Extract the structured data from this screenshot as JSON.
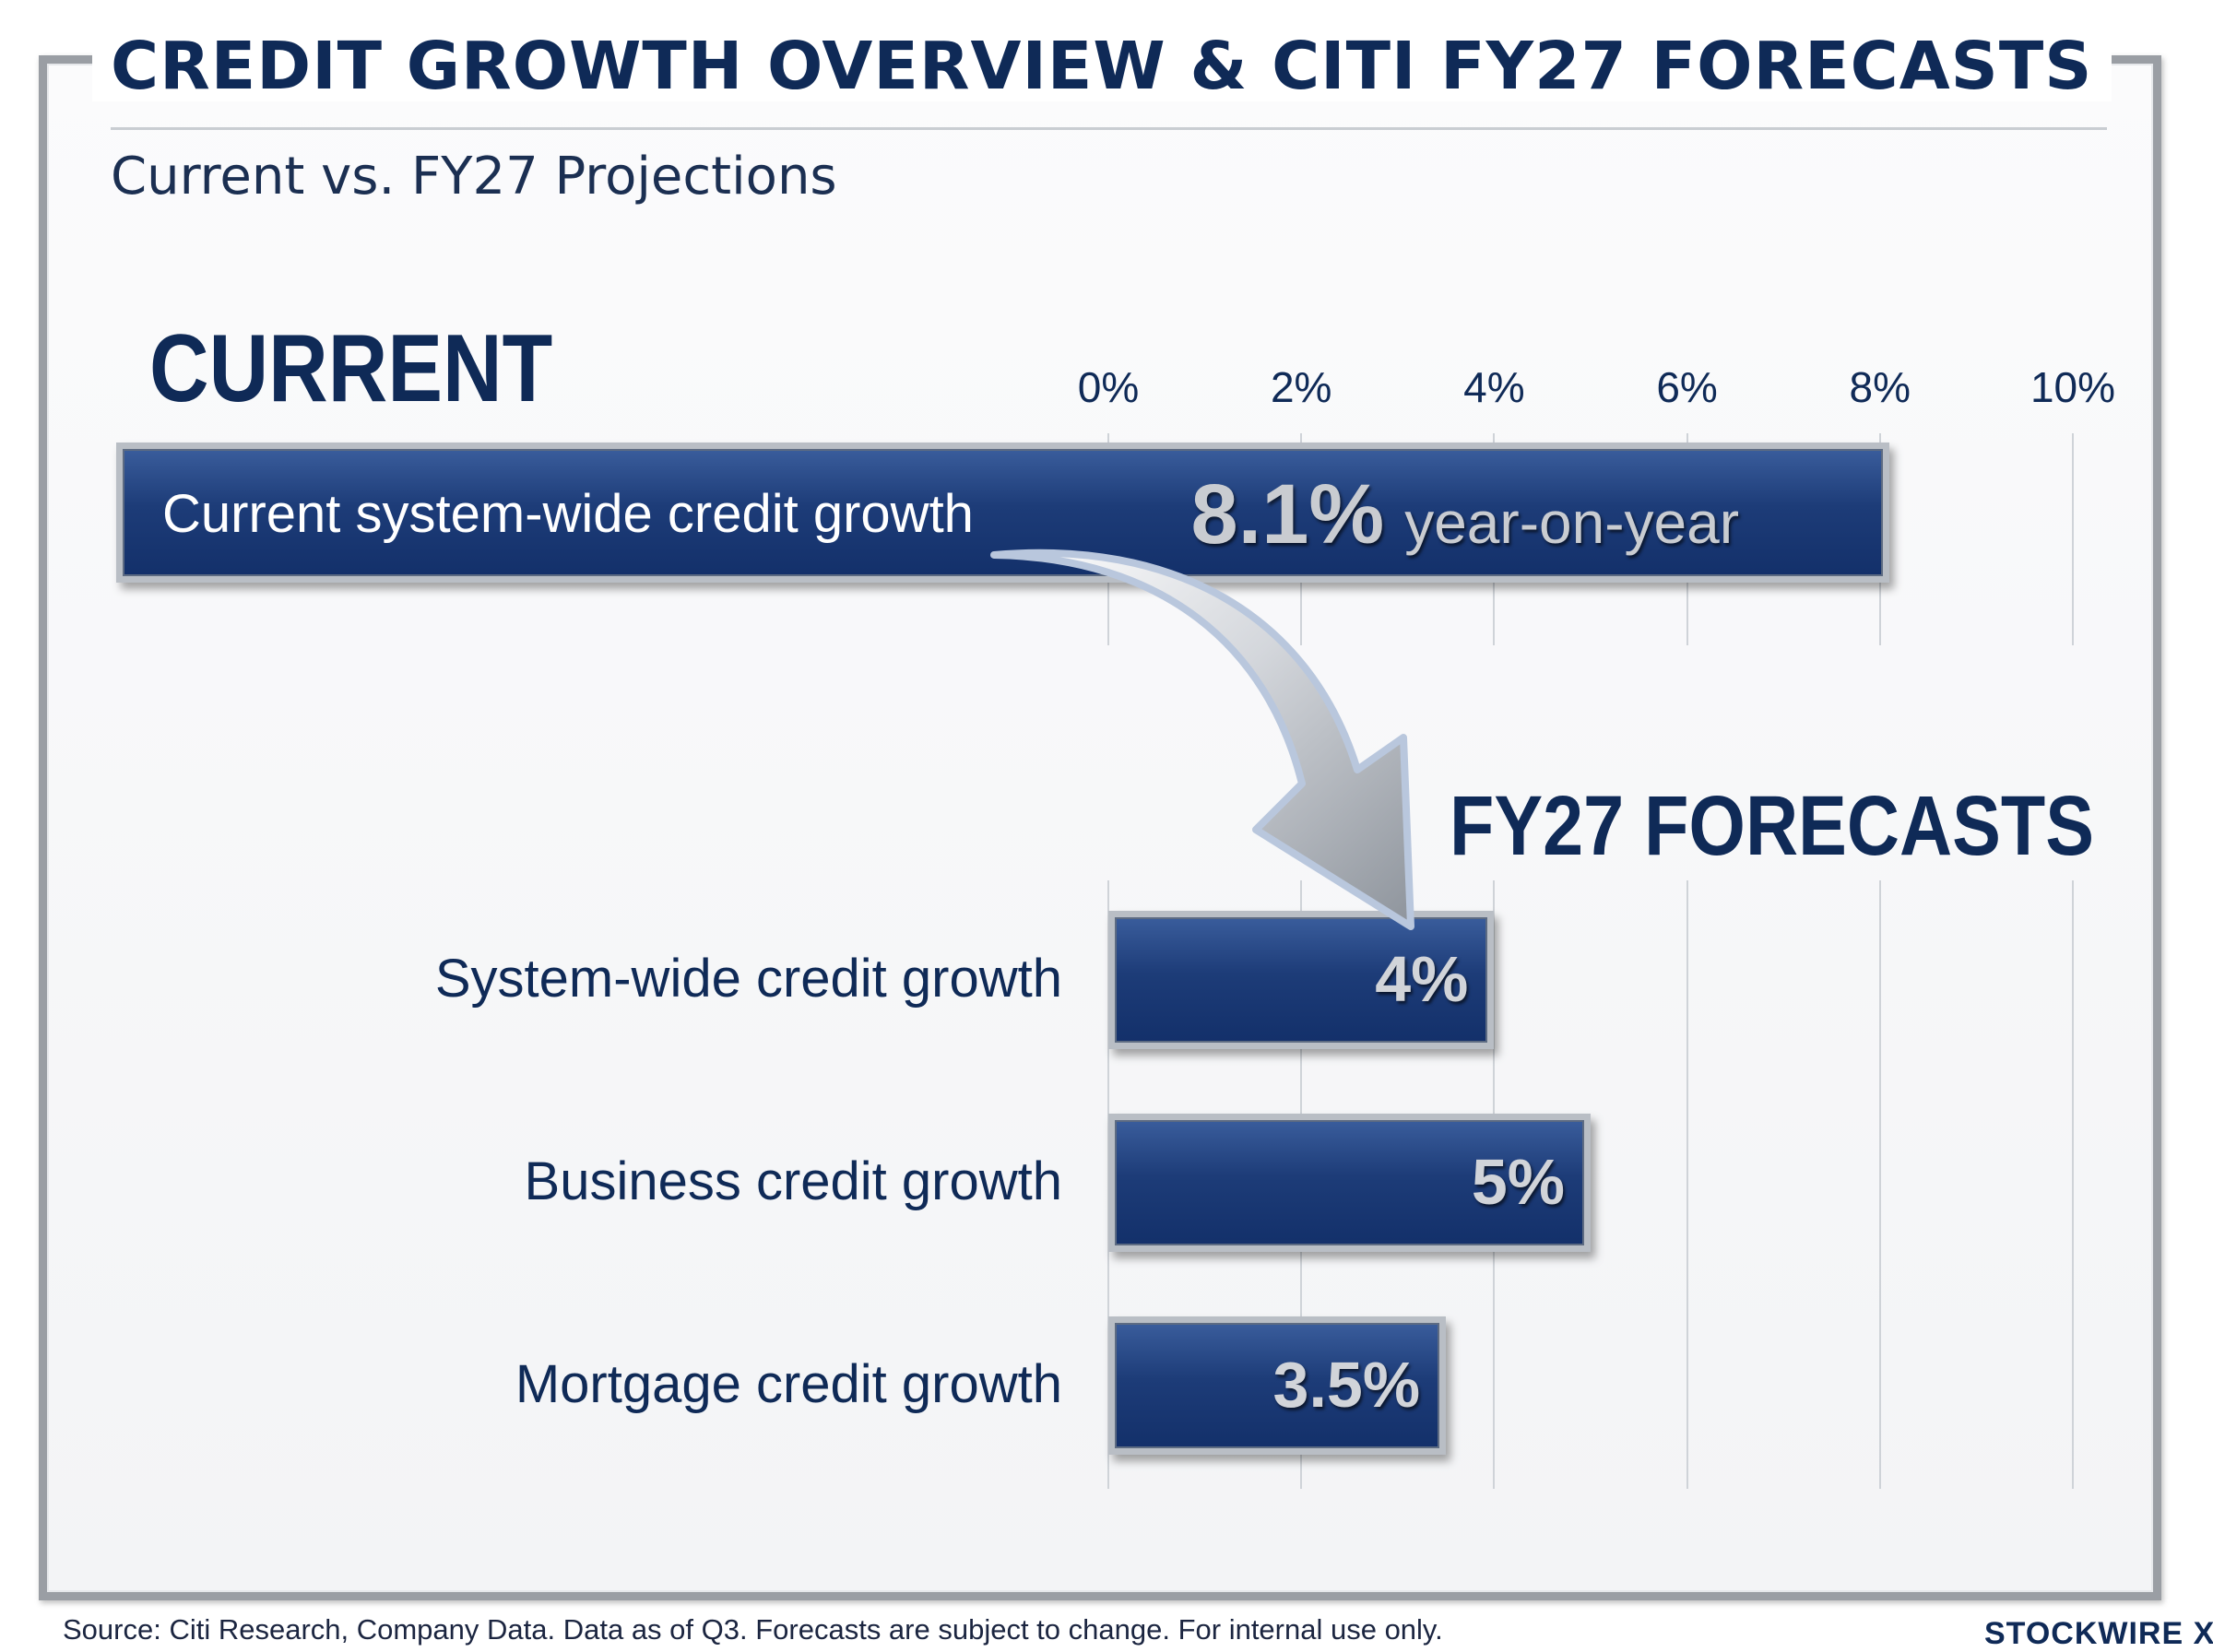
{
  "header": {
    "title": "CREDIT GROWTH OVERVIEW & CITI FY27 FORECASTS",
    "subtitle": "Current vs. FY27 Projections"
  },
  "sections": {
    "current": "CURRENT",
    "forecasts": "FY27 FORECASTS"
  },
  "chart_data": {
    "type": "bar",
    "orientation": "horizontal",
    "x_ticks": [
      "0%",
      "2%",
      "4%",
      "6%",
      "8%",
      "10%"
    ],
    "xlim": [
      0,
      10
    ],
    "grid": true,
    "current": {
      "category": "Current system-wide credit growth",
      "value": 8.1,
      "value_label": "8.1%",
      "unit_label": "year-on-year"
    },
    "forecasts": {
      "categories": [
        "System-wide credit growth",
        "Business credit growth",
        "Mortgage credit growth"
      ],
      "values": [
        4,
        5,
        3.5
      ],
      "value_labels": [
        "4%",
        "5%",
        "3.5%"
      ]
    }
  },
  "colors": {
    "bar": "#1d3c78",
    "text": "#0f2a57"
  },
  "footer": {
    "source": "Source: Citi Research, Company Data. Data as of Q3. Forecasts are subject to change. For internal use only.",
    "brand": "STOCKWIRE X"
  }
}
